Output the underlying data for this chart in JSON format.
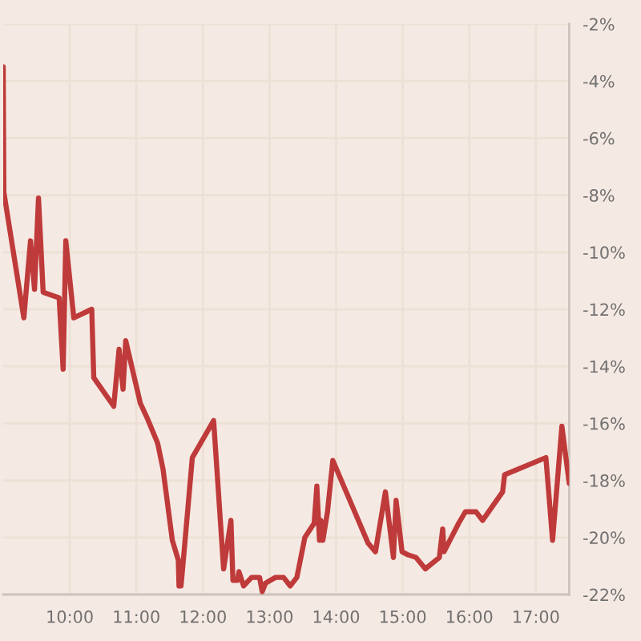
{
  "chart_data": {
    "type": "line",
    "x": [
      9.0,
      9.01,
      9.31,
      9.41,
      9.47,
      9.53,
      9.6,
      9.84,
      9.9,
      9.94,
      10.06,
      10.33,
      10.36,
      10.66,
      10.74,
      10.8,
      10.84,
      11.06,
      11.16,
      11.32,
      11.4,
      11.54,
      11.63,
      11.64,
      11.67,
      11.69,
      11.84,
      12.16,
      12.31,
      12.42,
      12.45,
      12.52,
      12.54,
      12.61,
      12.73,
      12.85,
      12.89,
      12.94,
      13.09,
      13.21,
      13.31,
      13.41,
      13.53,
      13.67,
      13.71,
      13.75,
      13.77,
      13.8,
      13.87,
      13.95,
      14.48,
      14.59,
      14.74,
      14.86,
      14.9,
      14.99,
      15.07,
      15.2,
      15.34,
      15.55,
      15.6,
      15.62,
      15.84,
      15.94,
      16.1,
      16.2,
      16.5,
      16.53,
      17.15,
      17.25,
      17.39,
      17.5
    ],
    "series": [
      {
        "color": "#bf3a3a",
        "values": [
          -3.5,
          -7.9,
          -12.3,
          -9.6,
          -11.3,
          -8.1,
          -11.4,
          -11.6,
          -14.1,
          -9.6,
          -12.3,
          -12.0,
          -14.4,
          -15.4,
          -13.4,
          -14.8,
          -13.1,
          -15.3,
          -15.8,
          -16.7,
          -17.6,
          -20.1,
          -20.8,
          -21.7,
          -21.7,
          -21.2,
          -17.2,
          -15.9,
          -21.1,
          -19.4,
          -21.5,
          -21.5,
          -21.2,
          -21.7,
          -21.4,
          -21.4,
          -21.9,
          -21.6,
          -21.4,
          -21.4,
          -21.7,
          -21.4,
          -20.0,
          -19.5,
          -18.2,
          -20.1,
          -19.4,
          -20.1,
          -19.1,
          -17.3,
          -20.2,
          -20.5,
          -18.4,
          -20.7,
          -18.7,
          -20.5,
          -20.6,
          -20.7,
          -21.1,
          -20.7,
          -19.7,
          -20.5,
          -19.5,
          -19.1,
          -19.1,
          -19.4,
          -18.4,
          -17.8,
          -17.2,
          -20.1,
          -16.1,
          -18.1
        ]
      }
    ],
    "xlim": [
      9,
      17.5
    ],
    "xticks": [
      {
        "value": 10,
        "label": "10:00"
      },
      {
        "value": 11,
        "label": "11:00"
      },
      {
        "value": 12,
        "label": "12:00"
      },
      {
        "value": 13,
        "label": "13:00"
      },
      {
        "value": 14,
        "label": "14:00"
      },
      {
        "value": 15,
        "label": "15:00"
      },
      {
        "value": 16,
        "label": "16:00"
      },
      {
        "value": 17,
        "label": "17:00"
      }
    ],
    "ylim": [
      -22,
      -2
    ],
    "yticks": [
      {
        "value": -2,
        "label": "-2%"
      },
      {
        "value": -4,
        "label": "-4%"
      },
      {
        "value": -6,
        "label": "-6%"
      },
      {
        "value": -8,
        "label": "-8%"
      },
      {
        "value": -10,
        "label": "-10%"
      },
      {
        "value": -12,
        "label": "-12%"
      },
      {
        "value": -14,
        "label": "-14%"
      },
      {
        "value": -16,
        "label": "-16%"
      },
      {
        "value": -18,
        "label": "-18%"
      },
      {
        "value": -20,
        "label": "-20%"
      },
      {
        "value": -22,
        "label": "-22%"
      }
    ],
    "grid": true
  }
}
